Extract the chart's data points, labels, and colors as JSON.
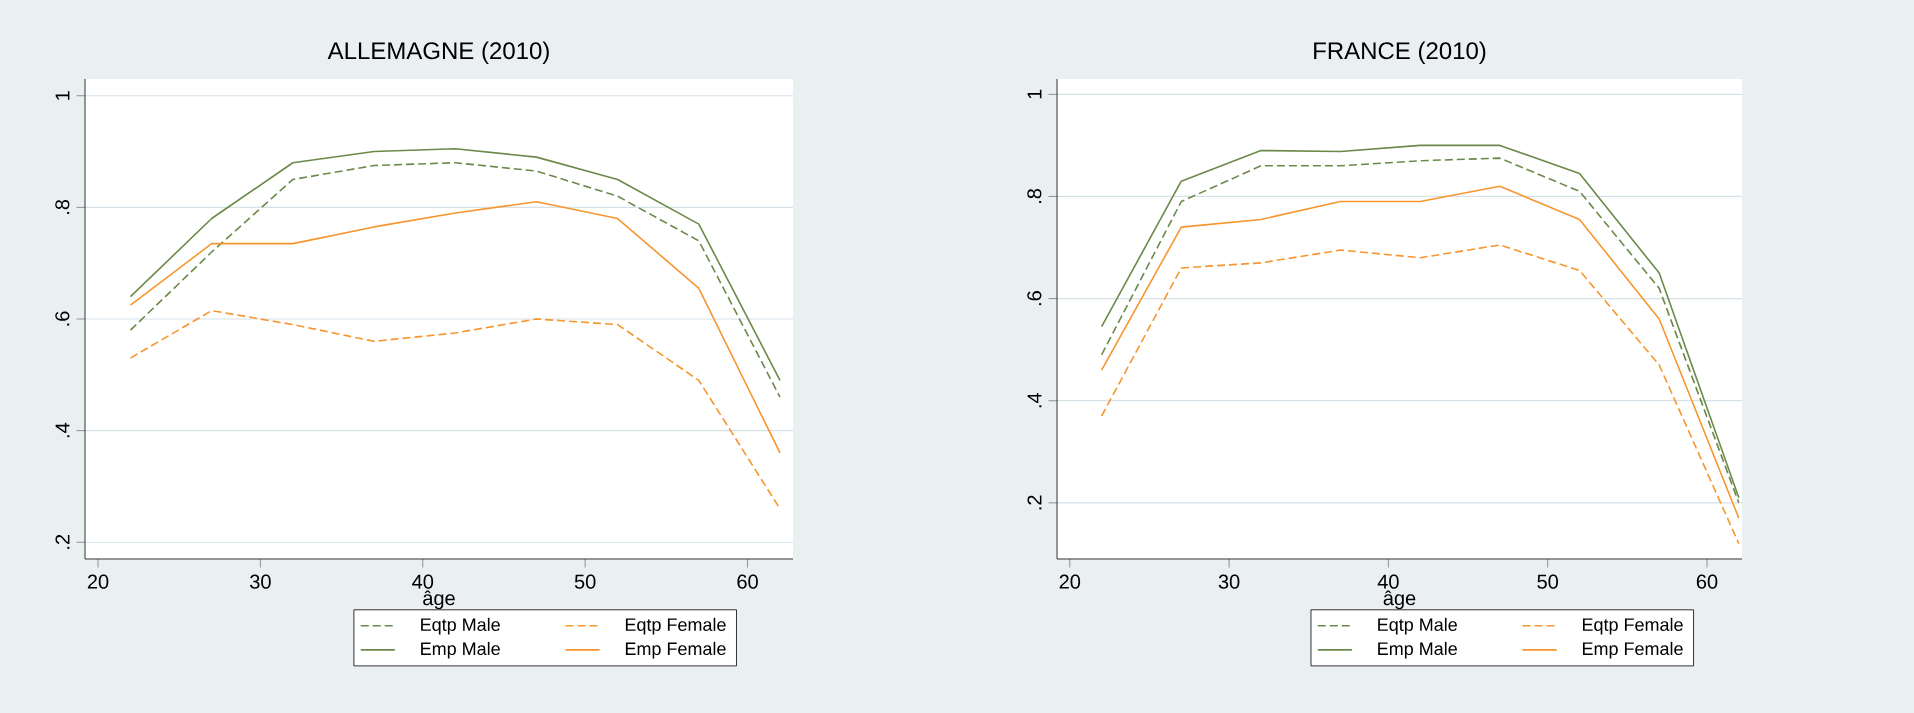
{
  "chart_data": [
    {
      "type": "line",
      "title": "ALLEMAGNE (2010)",
      "xlabel": "âge",
      "x": [
        22,
        27,
        32,
        37,
        42,
        47,
        52,
        57,
        62
      ],
      "xlim": [
        19.2,
        62.8
      ],
      "xticks": [
        20,
        30,
        40,
        50,
        60
      ],
      "ylim": [
        0.17,
        1.03
      ],
      "yticks": [
        {
          "value": 0.2,
          "label": ".2"
        },
        {
          "value": 0.4,
          "label": ".4"
        },
        {
          "value": 0.6,
          "label": ".6"
        },
        {
          "value": 0.8,
          "label": ".8"
        },
        1
      ],
      "grid": "y",
      "legend": "bottom",
      "series": [
        {
          "name": "Eqtp Male",
          "color": "#6b8a4a",
          "line_style": "dashed",
          "values": [
            0.58,
            0.72,
            0.85,
            0.875,
            0.88,
            0.865,
            0.82,
            0.74,
            0.46
          ]
        },
        {
          "name": "Eqtp Female",
          "color": "#f7962e",
          "line_style": "dashed",
          "values": [
            0.53,
            0.615,
            0.59,
            0.56,
            0.575,
            0.6,
            0.59,
            0.49,
            0.26
          ]
        },
        {
          "name": "Emp Male",
          "color": "#6b8a4a",
          "line_style": "solid",
          "values": [
            0.64,
            0.78,
            0.88,
            0.9,
            0.905,
            0.89,
            0.85,
            0.77,
            0.49
          ]
        },
        {
          "name": "Emp Female",
          "color": "#f7962e",
          "line_style": "solid",
          "values": [
            0.625,
            0.735,
            0.735,
            0.765,
            0.79,
            0.81,
            0.78,
            0.655,
            0.36
          ]
        }
      ]
    },
    {
      "type": "line",
      "title": "FRANCE (2010)",
      "xlabel": "âge",
      "x": [
        22,
        27,
        32,
        37,
        42,
        47,
        52,
        57,
        62
      ],
      "xlim": [
        19.2,
        62.2
      ],
      "xticks": [
        20,
        30,
        40,
        50,
        60
      ],
      "ylim": [
        0.09,
        1.03
      ],
      "yticks": [
        {
          "value": 0.2,
          "label": ".2"
        },
        {
          "value": 0.4,
          "label": ".4"
        },
        {
          "value": 0.6,
          "label": ".6"
        },
        {
          "value": 0.8,
          "label": ".8"
        },
        1
      ],
      "grid": "y",
      "legend": "bottom",
      "series": [
        {
          "name": "Eqtp Male",
          "color": "#6b8a4a",
          "line_style": "dashed",
          "values": [
            0.49,
            0.79,
            0.86,
            0.86,
            0.87,
            0.875,
            0.81,
            0.62,
            0.2
          ]
        },
        {
          "name": "Eqtp Female",
          "color": "#f7962e",
          "line_style": "dashed",
          "values": [
            0.37,
            0.66,
            0.67,
            0.695,
            0.68,
            0.705,
            0.655,
            0.47,
            0.12
          ]
        },
        {
          "name": "Emp Male",
          "color": "#6b8a4a",
          "line_style": "solid",
          "values": [
            0.545,
            0.83,
            0.89,
            0.888,
            0.9,
            0.9,
            0.845,
            0.65,
            0.21
          ]
        },
        {
          "name": "Emp Female",
          "color": "#f7962e",
          "line_style": "solid",
          "values": [
            0.46,
            0.74,
            0.755,
            0.79,
            0.79,
            0.82,
            0.755,
            0.56,
            0.17
          ]
        }
      ]
    }
  ]
}
